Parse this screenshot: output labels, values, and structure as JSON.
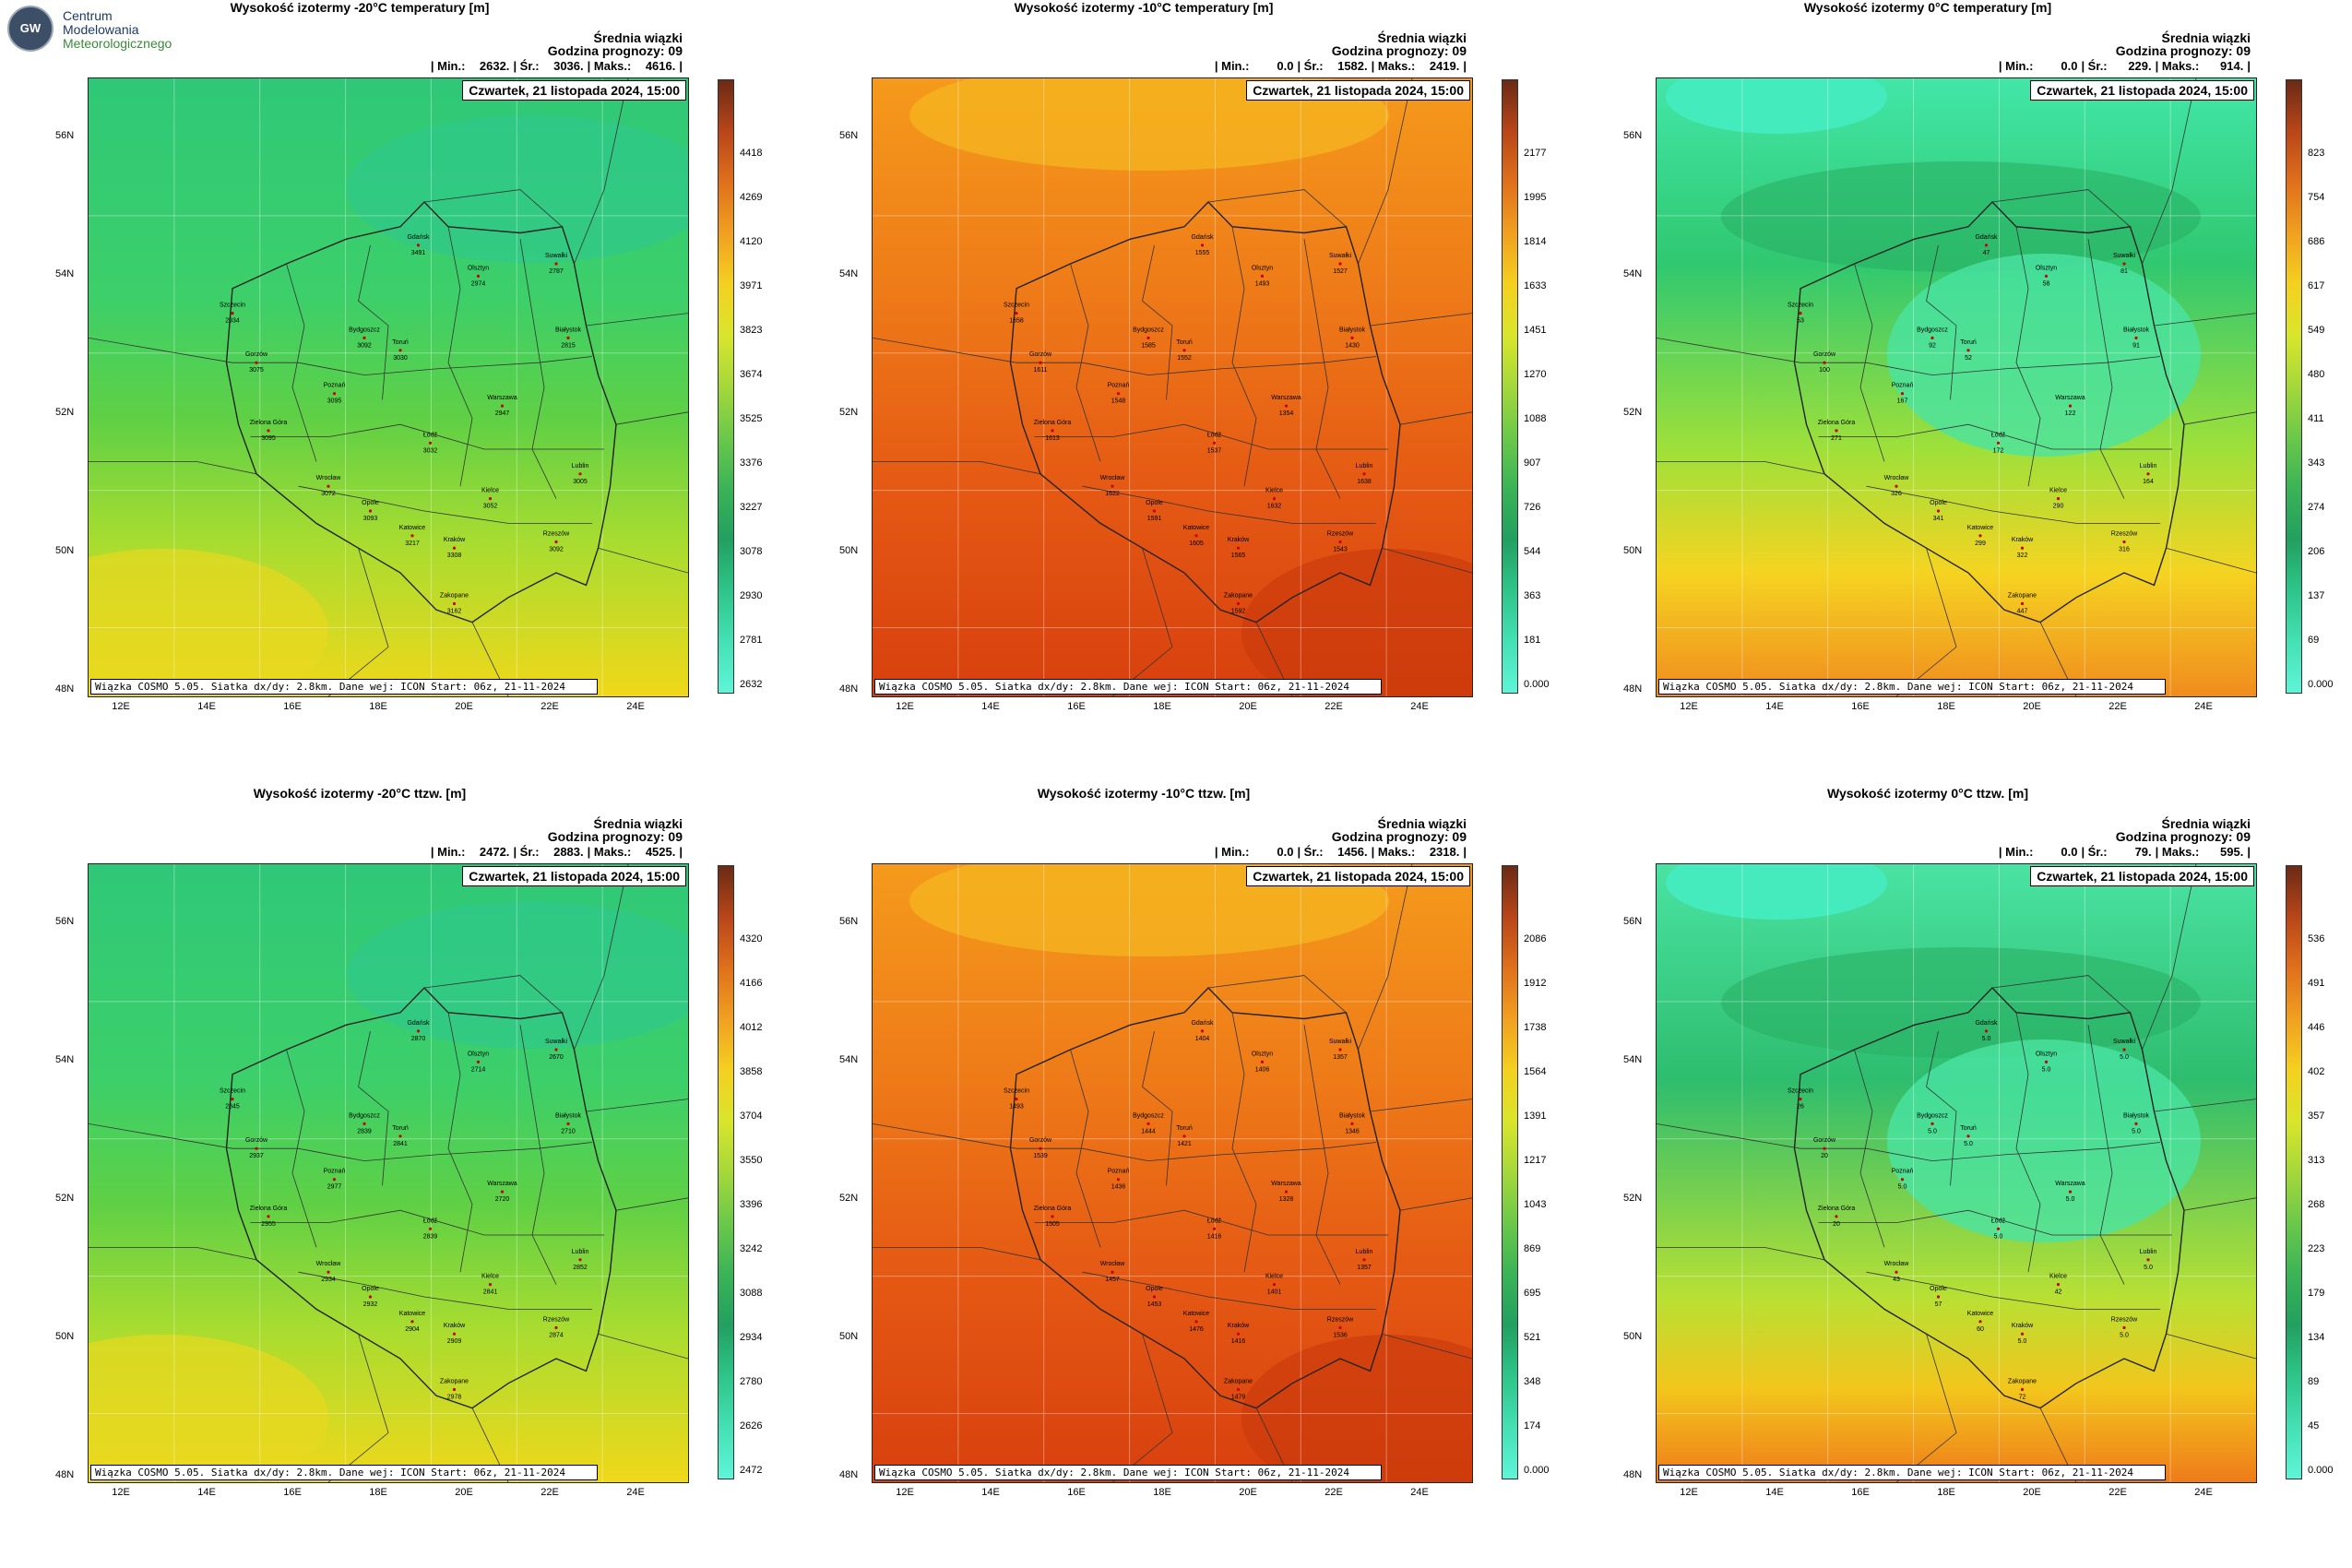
{
  "logo": {
    "badge": "GW",
    "lines": [
      "Centrum",
      "Modelowania",
      "Meteorologicznego"
    ]
  },
  "icons": {
    "city": "city-dot-icon"
  },
  "panels": [
    {
      "title": "Wysokość izotermy -20°C temperatury [m]",
      "avg_title": "Średnia wiązki",
      "forecast_hour": "Godzina prognozy: 09",
      "min_label": "| Min.:",
      "min": "2632.",
      "avg_label": "| Śr.:",
      "avg": "3036.",
      "max_label": "| Maks.:",
      "max": "4616.",
      "end": "|",
      "date": "Czwartek, 21 listopada 2024, 15:00",
      "footer": "Wiązka COSMO 5.05. Siatka dx/dy: 2.8km. Dane wej: ICON Start: 06z, 21-11-2024",
      "colorbar": [
        "4418",
        "4269",
        "4120",
        "3971",
        "3823",
        "3674",
        "3525",
        "3376",
        "3227",
        "3078",
        "2930",
        "2781",
        "2632"
      ],
      "palette": "green",
      "cities": [
        {
          "name": "Gdańsk",
          "v": "3491"
        },
        {
          "name": "Suwałki",
          "v": "2787"
        },
        {
          "name": "Olsztyn",
          "v": "2974"
        },
        {
          "name": "Szczecin",
          "v": "2934"
        },
        {
          "name": "Białystok",
          "v": "2815"
        },
        {
          "name": "Bydgoszcz",
          "v": "3092"
        },
        {
          "name": "Toruń",
          "v": "3030"
        },
        {
          "name": "Gorzów",
          "v": "3075"
        },
        {
          "name": "Poznań",
          "v": "3095"
        },
        {
          "name": "Warszawa",
          "v": "2947"
        },
        {
          "name": "Zielona Góra",
          "v": "3095"
        },
        {
          "name": "Łódź",
          "v": "3032"
        },
        {
          "name": "Wrocław",
          "v": "3072"
        },
        {
          "name": "Lublin",
          "v": "3005"
        },
        {
          "name": "Kielce",
          "v": "3052"
        },
        {
          "name": "Opole",
          "v": "3093"
        },
        {
          "name": "Katowice",
          "v": "3217"
        },
        {
          "name": "Kraków",
          "v": "3308"
        },
        {
          "name": "Rzeszów",
          "v": "3092"
        },
        {
          "name": "Zakopane",
          "v": "3162"
        }
      ]
    },
    {
      "title": "Wysokość izotermy -10°C temperatury [m]",
      "avg_title": "Średnia wiązki",
      "forecast_hour": "Godzina prognozy: 09",
      "min_label": "| Min.:",
      "min": "0.0",
      "avg_label": "| Śr.:",
      "avg": "1582.",
      "max_label": "| Maks.:",
      "max": "2419.",
      "end": "|",
      "date": "Czwartek, 21 listopada 2024, 15:00",
      "footer": "Wiązka COSMO 5.05. Siatka dx/dy: 2.8km. Dane wej: ICON Start: 06z, 21-11-2024",
      "colorbar": [
        "2177",
        "1995",
        "1814",
        "1633",
        "1451",
        "1270",
        "1088",
        "907",
        "726",
        "544",
        "363",
        "181",
        "0.000"
      ],
      "palette": "orange",
      "cities": [
        {
          "name": "Gdańsk",
          "v": "1555"
        },
        {
          "name": "Suwałki",
          "v": "1527"
        },
        {
          "name": "Olsztyn",
          "v": "1493"
        },
        {
          "name": "Szczecin",
          "v": "1658"
        },
        {
          "name": "Białystok",
          "v": "1430"
        },
        {
          "name": "Bydgoszcz",
          "v": "1585"
        },
        {
          "name": "Toruń",
          "v": "1552"
        },
        {
          "name": "Gorzów",
          "v": "1611"
        },
        {
          "name": "Poznań",
          "v": "1548"
        },
        {
          "name": "Warszawa",
          "v": "1354"
        },
        {
          "name": "Zielona Góra",
          "v": "1613"
        },
        {
          "name": "Łódź",
          "v": "1537"
        },
        {
          "name": "Wrocław",
          "v": "1622"
        },
        {
          "name": "Lublin",
          "v": "1638"
        },
        {
          "name": "Kielce",
          "v": "1632"
        },
        {
          "name": "Opole",
          "v": "1591"
        },
        {
          "name": "Katowice",
          "v": "1605"
        },
        {
          "name": "Kraków",
          "v": "1565"
        },
        {
          "name": "Rzeszów",
          "v": "1543"
        },
        {
          "name": "Zakopane",
          "v": "1592"
        }
      ]
    },
    {
      "title": "Wysokość izotermy 0°C temperatury [m]",
      "avg_title": "Średnia wiązki",
      "forecast_hour": "Godzina prognozy: 09",
      "min_label": "| Min.:",
      "min": "0.0",
      "avg_label": "| Śr.:",
      "avg": "229.",
      "max_label": "| Maks.:",
      "max": "914.",
      "end": "|",
      "date": "Czwartek, 21 listopada 2024, 15:00",
      "footer": "Wiązka COSMO 5.05. Siatka dx/dy: 2.8km. Dane wej: ICON Start: 06z, 21-11-2024",
      "colorbar": [
        "823",
        "754",
        "686",
        "617",
        "549",
        "480",
        "411",
        "343",
        "274",
        "206",
        "137",
        "69",
        "0.000"
      ],
      "palette": "zero",
      "cities": [
        {
          "name": "Gdańsk",
          "v": "47"
        },
        {
          "name": "Suwałki",
          "v": "81"
        },
        {
          "name": "Olsztyn",
          "v": "58"
        },
        {
          "name": "Szczecin",
          "v": "53"
        },
        {
          "name": "Białystok",
          "v": "91"
        },
        {
          "name": "Bydgoszcz",
          "v": "92"
        },
        {
          "name": "Toruń",
          "v": "52"
        },
        {
          "name": "Gorzów",
          "v": "100"
        },
        {
          "name": "Poznań",
          "v": "167"
        },
        {
          "name": "Warszawa",
          "v": "122"
        },
        {
          "name": "Zielona Góra",
          "v": "271"
        },
        {
          "name": "Łódź",
          "v": "172"
        },
        {
          "name": "Wrocław",
          "v": "326"
        },
        {
          "name": "Lublin",
          "v": "164"
        },
        {
          "name": "Kielce",
          "v": "290"
        },
        {
          "name": "Opole",
          "v": "341"
        },
        {
          "name": "Katowice",
          "v": "299"
        },
        {
          "name": "Kraków",
          "v": "322"
        },
        {
          "name": "Rzeszów",
          "v": "316"
        },
        {
          "name": "Zakopane",
          "v": "447"
        }
      ]
    },
    {
      "title": "Wysokość izotermy -20°C ttzw. [m]",
      "avg_title": "Średnia wiązki",
      "forecast_hour": "Godzina prognozy: 09",
      "min_label": "| Min.:",
      "min": "2472.",
      "avg_label": "| Śr.:",
      "avg": "2883.",
      "max_label": "| Maks.:",
      "max": "4525.",
      "end": "|",
      "date": "Czwartek, 21 listopada 2024, 15:00",
      "footer": "Wiązka COSMO 5.05. Siatka dx/dy: 2.8km. Dane wej: ICON Start: 06z, 21-11-2024",
      "colorbar": [
        "4320",
        "4166",
        "4012",
        "3858",
        "3704",
        "3550",
        "3396",
        "3242",
        "3088",
        "2934",
        "2780",
        "2626",
        "2472"
      ],
      "palette": "green",
      "cities": [
        {
          "name": "Gdańsk",
          "v": "2870"
        },
        {
          "name": "Suwałki",
          "v": "2670"
        },
        {
          "name": "Olsztyn",
          "v": "2714"
        },
        {
          "name": "Szczecin",
          "v": "2845"
        },
        {
          "name": "Białystok",
          "v": "2710"
        },
        {
          "name": "Bydgoszcz",
          "v": "2839"
        },
        {
          "name": "Toruń",
          "v": "2841"
        },
        {
          "name": "Gorzów",
          "v": "2937"
        },
        {
          "name": "Poznań",
          "v": "2977"
        },
        {
          "name": "Warszawa",
          "v": "2720"
        },
        {
          "name": "Zielona Góra",
          "v": "2955"
        },
        {
          "name": "Łódź",
          "v": "2839"
        },
        {
          "name": "Wrocław",
          "v": "2934"
        },
        {
          "name": "Lublin",
          "v": "2852"
        },
        {
          "name": "Kielce",
          "v": "2841"
        },
        {
          "name": "Opole",
          "v": "2932"
        },
        {
          "name": "Katowice",
          "v": "2904"
        },
        {
          "name": "Kraków",
          "v": "2909"
        },
        {
          "name": "Rzeszów",
          "v": "2874"
        },
        {
          "name": "Zakopane",
          "v": "2978"
        }
      ]
    },
    {
      "title": "Wysokość izotermy -10°C ttzw. [m]",
      "avg_title": "Średnia wiązki",
      "forecast_hour": "Godzina prognozy: 09",
      "min_label": "| Min.:",
      "min": "0.0",
      "avg_label": "| Śr.:",
      "avg": "1456.",
      "max_label": "| Maks.:",
      "max": "2318.",
      "end": "|",
      "date": "Czwartek, 21 listopada 2024, 15:00",
      "footer": "Wiązka COSMO 5.05. Siatka dx/dy: 2.8km. Dane wej: ICON Start: 06z, 21-11-2024",
      "colorbar": [
        "2086",
        "1912",
        "1738",
        "1564",
        "1391",
        "1217",
        "1043",
        "869",
        "695",
        "521",
        "348",
        "174",
        "0.000"
      ],
      "palette": "orange",
      "cities": [
        {
          "name": "Gdańsk",
          "v": "1404"
        },
        {
          "name": "Suwałki",
          "v": "1357"
        },
        {
          "name": "Olsztyn",
          "v": "1406"
        },
        {
          "name": "Szczecin",
          "v": "1493"
        },
        {
          "name": "Białystok",
          "v": "1346"
        },
        {
          "name": "Bydgoszcz",
          "v": "1444"
        },
        {
          "name": "Toruń",
          "v": "1421"
        },
        {
          "name": "Gorzów",
          "v": "1539"
        },
        {
          "name": "Poznań",
          "v": "1436"
        },
        {
          "name": "Warszawa",
          "v": "1328"
        },
        {
          "name": "Zielona Góra",
          "v": "1505"
        },
        {
          "name": "Łódź",
          "v": "1416"
        },
        {
          "name": "Wrocław",
          "v": "1457"
        },
        {
          "name": "Lublin",
          "v": "1357"
        },
        {
          "name": "Kielce",
          "v": "1401"
        },
        {
          "name": "Opole",
          "v": "1453"
        },
        {
          "name": "Katowice",
          "v": "1476"
        },
        {
          "name": "Kraków",
          "v": "1416"
        },
        {
          "name": "Rzeszów",
          "v": "1536"
        },
        {
          "name": "Zakopane",
          "v": "1479"
        }
      ]
    },
    {
      "title": "Wysokość izotermy 0°C ttzw. [m]",
      "avg_title": "Średnia wiązki",
      "forecast_hour": "Godzina prognozy: 09",
      "min_label": "| Min.:",
      "min": "0.0",
      "avg_label": "| Śr.:",
      "avg": "79.",
      "max_label": "| Maks.:",
      "max": "595.",
      "end": "|",
      "date": "Czwartek, 21 listopada 2024, 15:00",
      "footer": "Wiązka COSMO 5.05. Siatka dx/dy: 2.8km. Dane wej: ICON Start: 06z, 21-11-2024",
      "colorbar": [
        "536",
        "491",
        "446",
        "402",
        "357",
        "313",
        "268",
        "223",
        "179",
        "134",
        "89",
        "45",
        "0.000"
      ],
      "palette": "zero2",
      "cities": [
        {
          "name": "Gdańsk",
          "v": "5.0"
        },
        {
          "name": "Suwałki",
          "v": "5.0"
        },
        {
          "name": "Olsztyn",
          "v": "5.0"
        },
        {
          "name": "Szczecin",
          "v": "26"
        },
        {
          "name": "Białystok",
          "v": "5.0"
        },
        {
          "name": "Bydgoszcz",
          "v": "5.0"
        },
        {
          "name": "Toruń",
          "v": "5.0"
        },
        {
          "name": "Gorzów",
          "v": "20"
        },
        {
          "name": "Poznań",
          "v": "5.0"
        },
        {
          "name": "Warszawa",
          "v": "5.0"
        },
        {
          "name": "Zielona Góra",
          "v": "20"
        },
        {
          "name": "Łódź",
          "v": "5.0"
        },
        {
          "name": "Wrocław",
          "v": "43"
        },
        {
          "name": "Lublin",
          "v": "5.0"
        },
        {
          "name": "Kielce",
          "v": "42"
        },
        {
          "name": "Opole",
          "v": "57"
        },
        {
          "name": "Katowice",
          "v": "60"
        },
        {
          "name": "Kraków",
          "v": "5.0"
        },
        {
          "name": "Rzeszów",
          "v": "5.0"
        },
        {
          "name": "Zakopane",
          "v": "72"
        }
      ]
    }
  ],
  "axes": {
    "lat_labels": [
      "56N",
      "54N",
      "52N",
      "50N",
      "48N"
    ],
    "lon_labels": [
      "12E",
      "14E",
      "16E",
      "18E",
      "20E",
      "22E",
      "24E"
    ]
  }
}
